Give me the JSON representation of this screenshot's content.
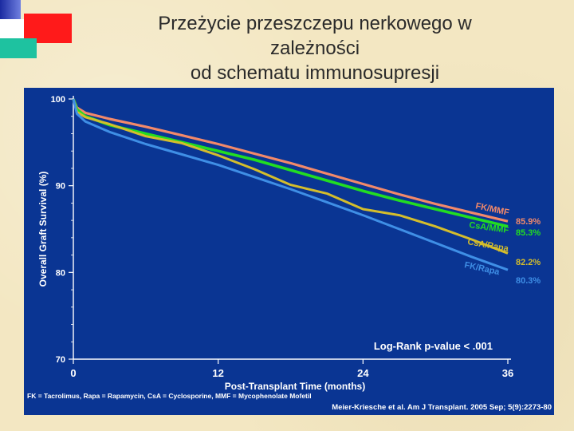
{
  "title_lines": [
    "Przeżycie przeszczepu nerkowego w",
    "zależności",
    "od schematu immunosupresji"
  ],
  "colors": {
    "panel": "#0a3593",
    "fk_mmf": "#f2896a",
    "csa_mmf": "#22dd22",
    "csa_rapa": "#d4bd2c",
    "fk_rapa": "#3f8fe6",
    "text": "#ffffff"
  },
  "chart_data": {
    "type": "line",
    "xlabel": "Post-Transplant Time (months)",
    "ylabel": "Overall Graft Survival (%)",
    "xlim": [
      0,
      36
    ],
    "ylim": [
      70,
      100
    ],
    "x_ticks": [
      "0",
      "12",
      "24",
      "36"
    ],
    "y_ticks": [
      "100",
      "90",
      "80",
      "70"
    ],
    "grid": false,
    "legend": "inline-right",
    "annotation": "Log-Rank p-value < .001",
    "series": [
      {
        "name": "FK/MMF",
        "final_label": "85.9%",
        "points": [
          [
            0,
            100
          ],
          [
            0.3,
            99.0
          ],
          [
            1,
            98.4
          ],
          [
            3,
            97.7
          ],
          [
            6,
            96.8
          ],
          [
            9,
            95.8
          ],
          [
            12,
            94.8
          ],
          [
            15,
            93.7
          ],
          [
            18,
            92.6
          ],
          [
            21,
            91.4
          ],
          [
            24,
            90.2
          ],
          [
            27,
            89.0
          ],
          [
            30,
            87.9
          ],
          [
            33,
            86.9
          ],
          [
            36,
            85.9
          ]
        ]
      },
      {
        "name": "CsA/MMF",
        "final_label": "85.3%",
        "points": [
          [
            0,
            100
          ],
          [
            0.3,
            98.8
          ],
          [
            1,
            98.0
          ],
          [
            3,
            97.0
          ],
          [
            6,
            96.0
          ],
          [
            9,
            95.0
          ],
          [
            12,
            94.0
          ],
          [
            15,
            93.0
          ],
          [
            18,
            91.8
          ],
          [
            21,
            90.6
          ],
          [
            24,
            89.4
          ],
          [
            27,
            88.3
          ],
          [
            30,
            87.3
          ],
          [
            33,
            86.3
          ],
          [
            36,
            85.3
          ]
        ]
      },
      {
        "name": "CsA/Rapa",
        "final_label": "82.2%",
        "points": [
          [
            0,
            100
          ],
          [
            0.3,
            98.5
          ],
          [
            1,
            97.9
          ],
          [
            3,
            97.1
          ],
          [
            6,
            95.7
          ],
          [
            9,
            94.9
          ],
          [
            12,
            93.5
          ],
          [
            15,
            91.9
          ],
          [
            18,
            90.1
          ],
          [
            21,
            89.1
          ],
          [
            24,
            87.3
          ],
          [
            27,
            86.6
          ],
          [
            30,
            85.3
          ],
          [
            33,
            83.8
          ],
          [
            36,
            82.2
          ]
        ]
      },
      {
        "name": "FK/Rapa",
        "final_label": "80.3%",
        "points": [
          [
            0,
            100
          ],
          [
            0.3,
            98.3
          ],
          [
            1,
            97.4
          ],
          [
            3,
            96.2
          ],
          [
            6,
            94.8
          ],
          [
            9,
            93.6
          ],
          [
            12,
            92.4
          ],
          [
            15,
            91.0
          ],
          [
            18,
            89.6
          ],
          [
            21,
            88.1
          ],
          [
            24,
            86.6
          ],
          [
            27,
            85.0
          ],
          [
            30,
            83.4
          ],
          [
            33,
            81.8
          ],
          [
            36,
            80.3
          ]
        ]
      }
    ]
  },
  "footnote": "FK = Tacrolimus, Rapa = Rapamycin, CsA = Cyclosporine, MMF = Mycophenolate Mofetil",
  "citation": "Meier-Kriesche et al. Am J Transplant. 2005 Sep; 5(9):2273-80"
}
